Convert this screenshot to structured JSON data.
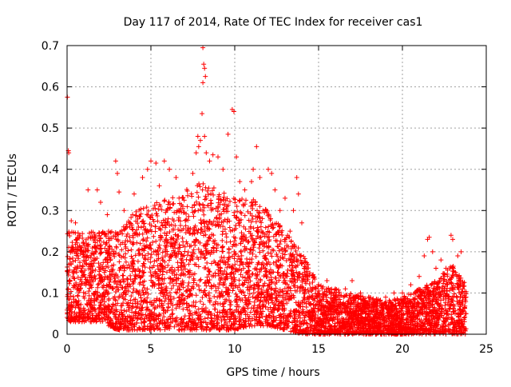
{
  "chart_data": {
    "type": "scatter",
    "title": "Day 117 of 2014, Rate Of TEC Index for receiver cas1",
    "xlabel": "GPS time / hours",
    "ylabel": "ROTI / TECUs",
    "xlim": [
      0,
      25
    ],
    "ylim": [
      0,
      0.7
    ],
    "x_ticks": [
      0,
      5,
      10,
      15,
      20,
      25
    ],
    "x_tick_labels": [
      "0",
      "5",
      "10",
      "15",
      "20",
      "25"
    ],
    "y_ticks": [
      0,
      0.1,
      0.2,
      0.3,
      0.4,
      0.5,
      0.6,
      0.7
    ],
    "y_tick_labels": [
      "0",
      "0.1",
      "0.2",
      "0.3",
      "0.4",
      "0.5",
      "0.6",
      "0.7"
    ],
    "grid": true,
    "marker": "+",
    "marker_color": "#ff0000",
    "series": [
      {
        "name": "ROTI",
        "points": [
          [
            0.02,
            0.575
          ],
          [
            0.08,
            0.445
          ],
          [
            0.1,
            0.44
          ],
          [
            0.25,
            0.275
          ],
          [
            0.3,
            0.2
          ],
          [
            0.5,
            0.27
          ],
          [
            1.25,
            0.35
          ],
          [
            1.8,
            0.35
          ],
          [
            2.0,
            0.32
          ],
          [
            2.4,
            0.29
          ],
          [
            2.9,
            0.42
          ],
          [
            3.0,
            0.39
          ],
          [
            3.1,
            0.345
          ],
          [
            3.4,
            0.3
          ],
          [
            4.0,
            0.34
          ],
          [
            4.5,
            0.38
          ],
          [
            4.8,
            0.4
          ],
          [
            5.0,
            0.42
          ],
          [
            5.3,
            0.415
          ],
          [
            5.5,
            0.36
          ],
          [
            5.8,
            0.42
          ],
          [
            6.1,
            0.4
          ],
          [
            6.5,
            0.38
          ],
          [
            6.9,
            0.31
          ],
          [
            7.5,
            0.39
          ],
          [
            7.7,
            0.44
          ],
          [
            7.8,
            0.48
          ],
          [
            7.85,
            0.455
          ],
          [
            7.95,
            0.47
          ],
          [
            8.1,
            0.695
          ],
          [
            8.15,
            0.655
          ],
          [
            8.2,
            0.645
          ],
          [
            8.25,
            0.625
          ],
          [
            8.1,
            0.61
          ],
          [
            8.05,
            0.535
          ],
          [
            8.2,
            0.48
          ],
          [
            8.3,
            0.44
          ],
          [
            8.5,
            0.42
          ],
          [
            8.7,
            0.435
          ],
          [
            9.0,
            0.43
          ],
          [
            9.3,
            0.4
          ],
          [
            9.6,
            0.485
          ],
          [
            9.85,
            0.545
          ],
          [
            9.95,
            0.54
          ],
          [
            10.1,
            0.43
          ],
          [
            10.3,
            0.37
          ],
          [
            10.6,
            0.35
          ],
          [
            11.0,
            0.37
          ],
          [
            11.1,
            0.4
          ],
          [
            11.3,
            0.455
          ],
          [
            11.5,
            0.38
          ],
          [
            12.0,
            0.4
          ],
          [
            12.2,
            0.39
          ],
          [
            12.4,
            0.35
          ],
          [
            12.7,
            0.3
          ],
          [
            13.0,
            0.33
          ],
          [
            13.3,
            0.25
          ],
          [
            13.5,
            0.3
          ],
          [
            13.7,
            0.38
          ],
          [
            13.8,
            0.34
          ],
          [
            14.0,
            0.27
          ],
          [
            14.3,
            0.14
          ],
          [
            15.0,
            0.12
          ],
          [
            15.5,
            0.13
          ],
          [
            16.0,
            0.11
          ],
          [
            16.6,
            0.11
          ],
          [
            17.0,
            0.13
          ],
          [
            17.5,
            0.1
          ],
          [
            18.0,
            0.09
          ],
          [
            18.5,
            0.08
          ],
          [
            19.0,
            0.09
          ],
          [
            19.5,
            0.1
          ],
          [
            20.0,
            0.1
          ],
          [
            20.5,
            0.12
          ],
          [
            21.0,
            0.14
          ],
          [
            21.3,
            0.19
          ],
          [
            21.5,
            0.23
          ],
          [
            21.6,
            0.235
          ],
          [
            21.8,
            0.2
          ],
          [
            22.0,
            0.16
          ],
          [
            22.3,
            0.18
          ],
          [
            22.6,
            0.16
          ],
          [
            22.9,
            0.24
          ],
          [
            23.0,
            0.23
          ],
          [
            23.3,
            0.19
          ],
          [
            23.5,
            0.2
          ],
          [
            23.6,
            0.12
          ],
          [
            23.8,
            0.05
          ]
        ],
        "dense_region_envelope": {
          "x": [
            0,
            1,
            2,
            3,
            4,
            5,
            6,
            7,
            8,
            9,
            10,
            11,
            12,
            13,
            14,
            15,
            16,
            17,
            18,
            19,
            20,
            21,
            22,
            23,
            23.8
          ],
          "y_min": [
            0.03,
            0.03,
            0.03,
            0.01,
            0.01,
            0.01,
            0.01,
            0.01,
            0.01,
            0.01,
            0.01,
            0.02,
            0.02,
            0.01,
            0.0,
            0.0,
            0.0,
            0.0,
            0.0,
            0.0,
            0.0,
            0.0,
            0.0,
            0.0,
            0.0
          ],
          "y_max": [
            0.25,
            0.25,
            0.25,
            0.25,
            0.3,
            0.32,
            0.33,
            0.35,
            0.37,
            0.35,
            0.33,
            0.33,
            0.3,
            0.25,
            0.2,
            0.12,
            0.11,
            0.1,
            0.09,
            0.08,
            0.09,
            0.11,
            0.13,
            0.17,
            0.12
          ]
        }
      }
    ]
  }
}
